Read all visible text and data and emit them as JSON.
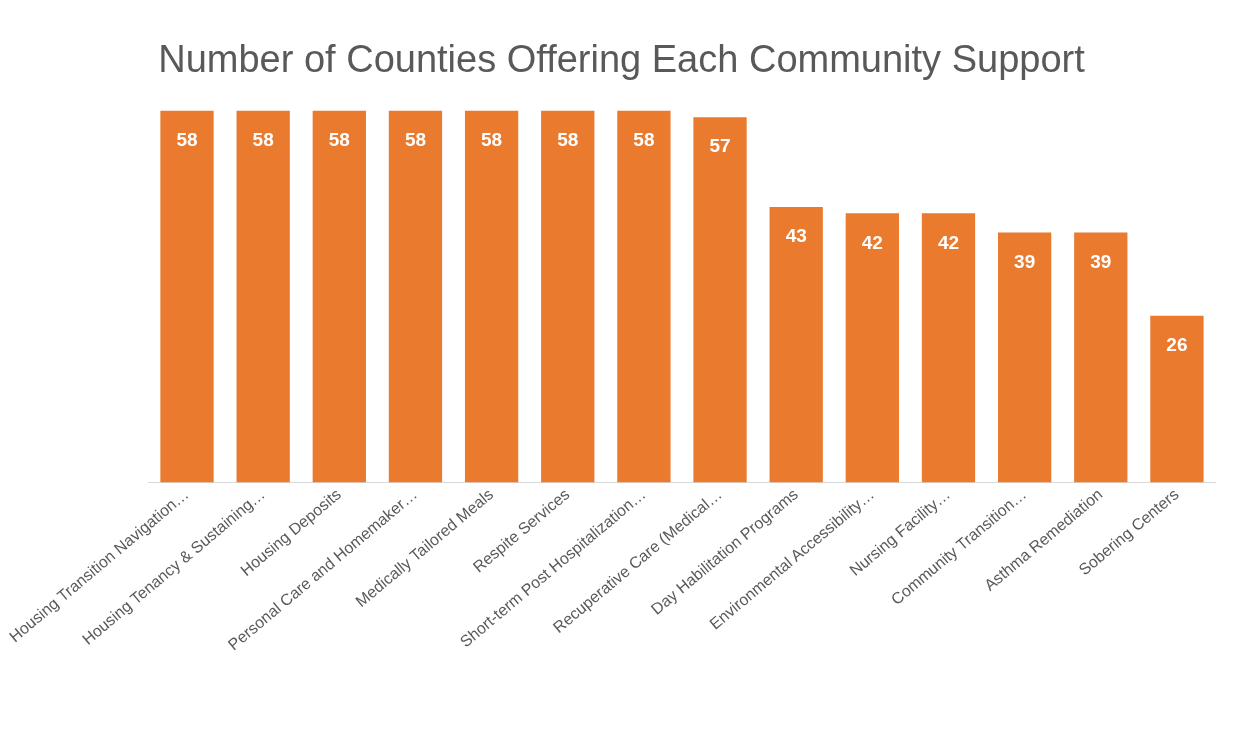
{
  "chart_data": {
    "type": "bar",
    "title": "Number of Counties Offering Each Community Support",
    "categories": [
      "Housing Transition Navigation…",
      "Housing Tenancy & Sustaining…",
      "Housing Deposits",
      "Personal Care and Homemaker…",
      "Medically Tailored Meals",
      "Respite Services",
      "Short-term Post Hospitalization…",
      "Recuperative Care (Medical…",
      "Day Habilitation Programs",
      "Environmental Accessibility…",
      "Nursing Facility…",
      "Community Transition…",
      "Asthma Remediation",
      "Sobering Centers"
    ],
    "values": [
      58,
      58,
      58,
      58,
      58,
      58,
      58,
      57,
      43,
      42,
      42,
      39,
      39,
      26
    ],
    "color": "#e97a2e",
    "data_labels": true,
    "grid": false,
    "legend": false
  }
}
